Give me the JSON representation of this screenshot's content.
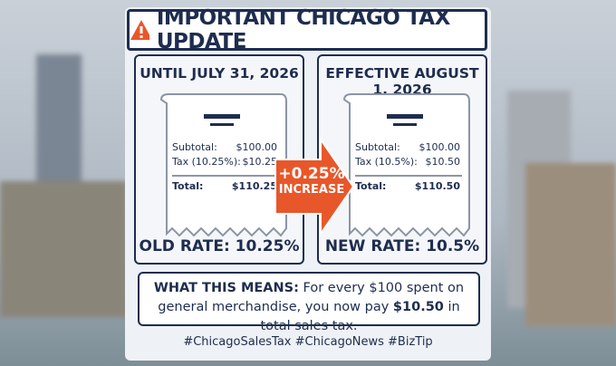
{
  "header": {
    "title": "IMPORTANT CHICAGO TAX UPDATE"
  },
  "before": {
    "heading": "UNTIL JULY 31, 2026",
    "rows": [
      [
        "Subtotal:",
        "$100.00"
      ],
      [
        "Tax (10.25%):",
        "$10.25"
      ],
      [
        "Total:",
        "$110.25"
      ]
    ],
    "rate": "OLD RATE: 10.25%"
  },
  "arrow": {
    "change": "+0.25%",
    "label": "INCREASE"
  },
  "after": {
    "heading": "EFFECTIVE AUGUST 1, 2026",
    "rows": [
      [
        "Subtotal:",
        "$100.00"
      ],
      [
        "Tax (10.5%):",
        "$10.50"
      ],
      [
        "Total:",
        "$110.50"
      ]
    ],
    "rate": "NEW RATE: 10.5%"
  },
  "note": {
    "lead": "WHAT THIS MEANS:",
    "text": "For every $100 spent on general merchandise, you now pay",
    "amount": "$10.50",
    "tail": "in total sales tax."
  },
  "hashtags": "#ChicagoSalesTax #ChicagoNews #BizTip"
}
